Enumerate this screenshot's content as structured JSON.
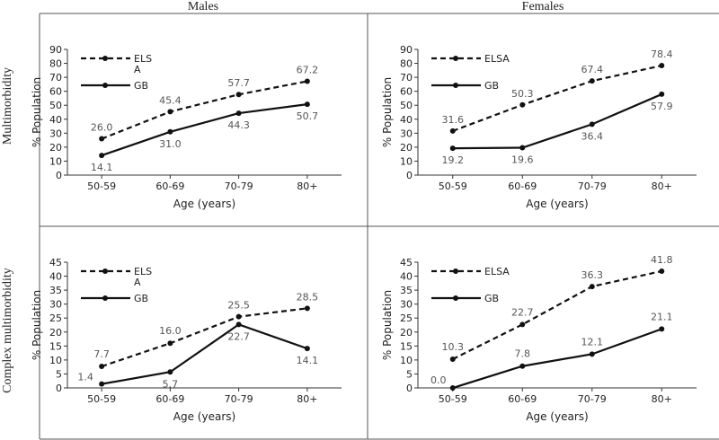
{
  "column_headers": [
    "Males",
    "Females"
  ],
  "row_headers": [
    "Multimorbidity",
    "Complex multimorbidity"
  ],
  "chart_data": [
    {
      "type": "line",
      "column": "Males",
      "row": "Multimorbidity",
      "categories": [
        "50-59",
        "60-69",
        "70-79",
        "80+"
      ],
      "xlabel": "Age (years)",
      "ylabel": "% Population",
      "ylim": [
        0,
        90
      ],
      "yticks": [
        0,
        10,
        20,
        30,
        40,
        50,
        60,
        70,
        80,
        90
      ],
      "legend_placement": "top-left",
      "series": [
        {
          "name": "ELSA",
          "legend_lines": [
            "ELS",
            "A"
          ],
          "style": "dashed",
          "values": [
            26.0,
            45.4,
            57.7,
            67.2
          ],
          "labels": [
            "26.0",
            "45.4",
            "57.7",
            "67.2"
          ]
        },
        {
          "name": "GB",
          "legend_lines": [
            "GB"
          ],
          "style": "solid",
          "values": [
            14.1,
            31.0,
            44.3,
            50.7
          ],
          "labels": [
            "14.1",
            "31.0",
            "44.3",
            "50.7"
          ]
        }
      ]
    },
    {
      "type": "line",
      "column": "Females",
      "row": "Multimorbidity",
      "categories": [
        "50-59",
        "60-69",
        "70-79",
        "80+"
      ],
      "xlabel": "Age (years)",
      "ylabel": "% Population",
      "ylim": [
        0,
        90
      ],
      "yticks": [
        0,
        10,
        20,
        30,
        40,
        50,
        60,
        70,
        80,
        90
      ],
      "legend_placement": "top-left",
      "series": [
        {
          "name": "ELSA",
          "legend_lines": [
            "ELSA"
          ],
          "style": "dashed",
          "values": [
            31.6,
            50.3,
            67.4,
            78.4
          ],
          "labels": [
            "31.6",
            "50.3",
            "67.4",
            "78.4"
          ]
        },
        {
          "name": "GB",
          "legend_lines": [
            "GB"
          ],
          "style": "solid",
          "values": [
            19.2,
            19.6,
            36.4,
            57.9
          ],
          "labels": [
            "19.2",
            "19.6",
            "36.4",
            "57.9"
          ]
        }
      ]
    },
    {
      "type": "line",
      "column": "Males",
      "row": "Complex multimorbidity",
      "categories": [
        "50-59",
        "60-69",
        "70-79",
        "80+"
      ],
      "xlabel": "Age (years)",
      "ylabel": "% Population",
      "ylim": [
        0,
        45
      ],
      "yticks": [
        0,
        5,
        10,
        15,
        20,
        25,
        30,
        35,
        40,
        45
      ],
      "legend_placement": "top-left",
      "series": [
        {
          "name": "ELSA",
          "legend_lines": [
            "ELS",
            "A"
          ],
          "style": "dashed",
          "values": [
            7.7,
            16.0,
            25.5,
            28.5
          ],
          "labels": [
            "7.7",
            "16.0",
            "25.5",
            "28.5"
          ]
        },
        {
          "name": "GB",
          "legend_lines": [
            "GB"
          ],
          "style": "solid",
          "values": [
            1.4,
            5.7,
            22.7,
            14.1
          ],
          "labels": [
            "1.4",
            "5.7",
            "22.7",
            "14.1"
          ]
        }
      ]
    },
    {
      "type": "line",
      "column": "Females",
      "row": "Complex multimorbidity",
      "categories": [
        "50-59",
        "60-69",
        "70-79",
        "80+"
      ],
      "xlabel": "Age (years)",
      "ylabel": "% Population",
      "ylim": [
        0,
        45
      ],
      "yticks": [
        0,
        5,
        10,
        15,
        20,
        25,
        30,
        35,
        40,
        45
      ],
      "legend_placement": "top-left",
      "series": [
        {
          "name": "ELSA",
          "legend_lines": [
            "ELSA"
          ],
          "style": "dashed",
          "values": [
            10.3,
            22.7,
            36.3,
            41.8
          ],
          "labels": [
            "10.3",
            "22.7",
            "36.3",
            "41.8"
          ]
        },
        {
          "name": "GB",
          "legend_lines": [
            "GB"
          ],
          "style": "solid",
          "values": [
            0.0,
            7.8,
            12.1,
            21.1
          ],
          "labels": [
            "0.0",
            "7.8",
            "12.1",
            "21.1"
          ]
        }
      ]
    }
  ]
}
